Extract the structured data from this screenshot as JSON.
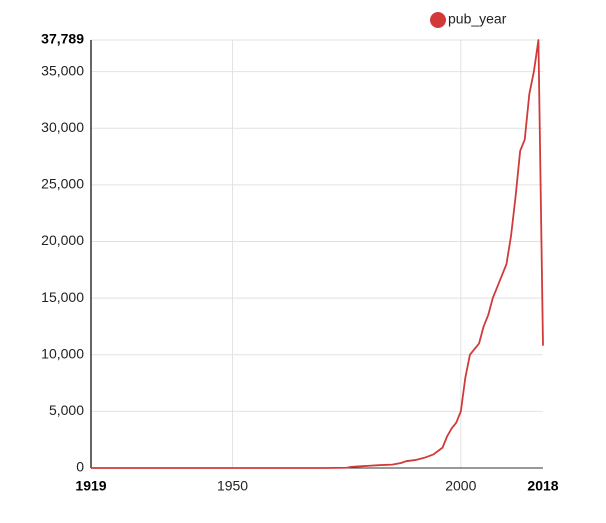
{
  "chart_data": {
    "type": "line",
    "x": [
      1919,
      1970,
      1975,
      1976,
      1978,
      1980,
      1982,
      1985,
      1987,
      1988,
      1990,
      1992,
      1994,
      1995,
      1996,
      1997,
      1998,
      1999,
      2000,
      2001,
      2002,
      2003,
      2004,
      2005,
      2006,
      2007,
      2008,
      2009,
      2010,
      2011,
      2012,
      2013,
      2014,
      2015,
      2016,
      2017,
      2018
    ],
    "series": [
      {
        "name": "pub_year",
        "color": "#d23a3a",
        "values": [
          0,
          0,
          20,
          100,
          150,
          200,
          250,
          300,
          450,
          600,
          700,
          900,
          1200,
          1500,
          1800,
          2800,
          3500,
          4000,
          5000,
          8000,
          10000,
          10500,
          11000,
          12500,
          13500,
          15000,
          16000,
          17000,
          18000,
          20500,
          24000,
          28000,
          29000,
          33000,
          35000,
          37789,
          10800
        ]
      }
    ],
    "xlim": [
      1919,
      2018
    ],
    "xticks": [
      1919,
      1950,
      2000,
      2018
    ],
    "ylim": [
      0,
      37789
    ],
    "yticks": [
      0,
      {
        "value": 5000,
        "label": "5,000"
      },
      {
        "value": 10000,
        "label": "10,000"
      },
      {
        "value": 15000,
        "label": "15,000"
      },
      {
        "value": 20000,
        "label": "20,000"
      },
      {
        "value": 25000,
        "label": "25,000"
      },
      {
        "value": 30000,
        "label": "30,000"
      },
      {
        "value": 35000,
        "label": "35,000"
      },
      {
        "value": 37789,
        "label": "37,789"
      }
    ],
    "grid": true,
    "legend": "top-right"
  }
}
